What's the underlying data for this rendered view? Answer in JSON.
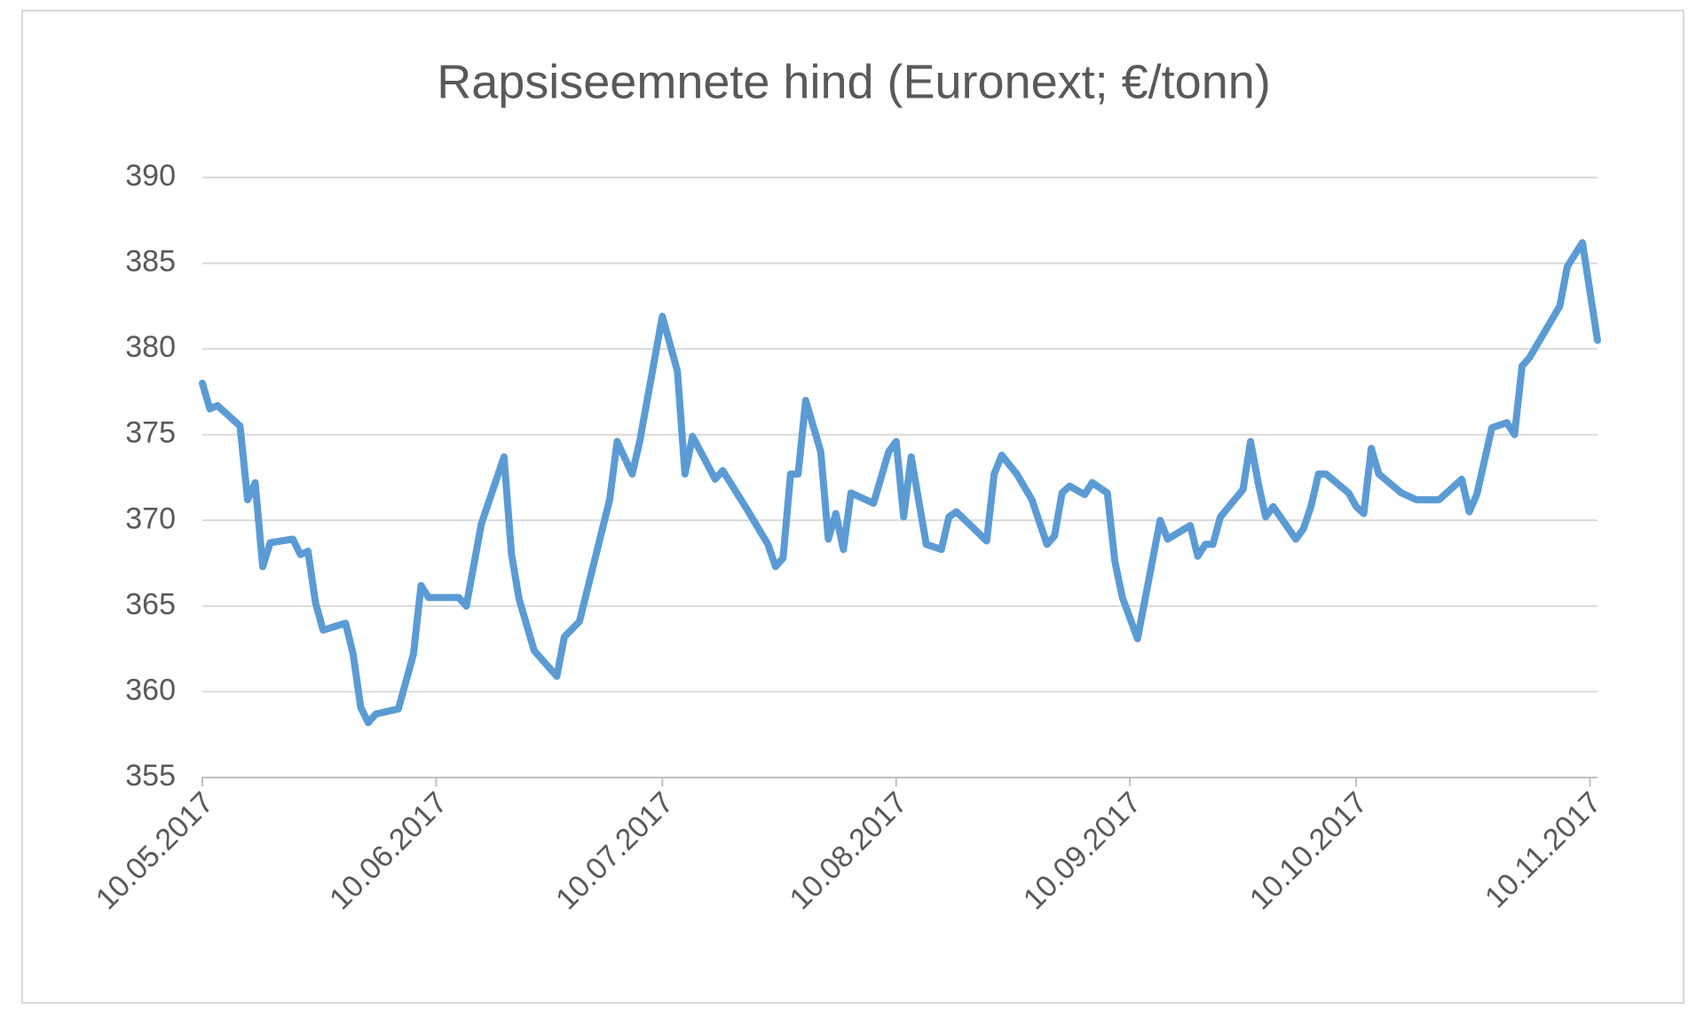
{
  "chart_data": {
    "type": "line",
    "title": "Rapsiseemnete hind (Euronext; €/tonn)",
    "x": [
      "10.05.2017",
      "11.05.2017",
      "12.05.2017",
      "15.05.2017",
      "16.05.2017",
      "17.05.2017",
      "18.05.2017",
      "19.05.2017",
      "22.05.2017",
      "23.05.2017",
      "24.05.2017",
      "25.05.2017",
      "26.05.2017",
      "29.05.2017",
      "30.05.2017",
      "31.05.2017",
      "01.06.2017",
      "02.06.2017",
      "05.06.2017",
      "07.06.2017",
      "08.06.2017",
      "09.06.2017",
      "13.06.2017",
      "14.06.2017",
      "16.06.2017",
      "19.06.2017",
      "20.06.2017",
      "21.06.2017",
      "23.06.2017",
      "26.06.2017",
      "27.06.2017",
      "29.06.2017",
      "03.07.2017",
      "04.07.2017",
      "06.07.2017",
      "07.07.2017",
      "10.07.2017",
      "12.07.2017",
      "13.07.2017",
      "14.07.2017",
      "17.07.2017",
      "18.07.2017",
      "21.07.2017",
      "24.07.2017",
      "25.07.2017",
      "26.07.2017",
      "27.07.2017",
      "28.07.2017",
      "29.07.2017",
      "31.07.2017",
      "01.08.2017",
      "02.08.2017",
      "03.08.2017",
      "04.08.2017",
      "07.08.2017",
      "09.08.2017",
      "10.08.2017",
      "11.08.2017",
      "12.08.2017",
      "14.08.2017",
      "16.08.2017",
      "17.08.2017",
      "18.08.2017",
      "22.08.2017",
      "23.08.2017",
      "24.08.2017",
      "26.08.2017",
      "28.08.2017",
      "30.08.2017",
      "31.08.2017",
      "01.09.2017",
      "02.09.2017",
      "04.09.2017",
      "05.09.2017",
      "07.09.2017",
      "08.09.2017",
      "09.09.2017",
      "11.09.2017",
      "14.09.2017",
      "15.09.2017",
      "18.09.2017",
      "19.09.2017",
      "20.09.2017",
      "21.09.2017",
      "22.09.2017",
      "25.09.2017",
      "26.09.2017",
      "27.09.2017",
      "28.09.2017",
      "29.09.2017",
      "02.10.2017",
      "03.10.2017",
      "04.10.2017",
      "05.10.2017",
      "06.10.2017",
      "09.10.2017",
      "10.10.2017",
      "11.10.2017",
      "12.10.2017",
      "13.10.2017",
      "16.10.2017",
      "18.10.2017",
      "21.10.2017",
      "24.10.2017",
      "25.10.2017",
      "26.10.2017",
      "28.10.2017",
      "30.10.2017",
      "31.10.2017",
      "01.11.2017",
      "02.11.2017",
      "06.11.2017",
      "07.11.2017",
      "09.11.2017",
      "11.11.2017"
    ],
    "series": [
      {
        "color": "#5b9bd5",
        "values": [
          378.0,
          376.5,
          376.7,
          375.5,
          371.2,
          372.2,
          367.3,
          368.7,
          368.9,
          368.0,
          368.2,
          365.2,
          363.6,
          364.0,
          362.2,
          359.1,
          358.2,
          358.7,
          359.0,
          362.2,
          366.2,
          365.5,
          365.5,
          365.0,
          369.8,
          373.7,
          368.0,
          365.4,
          362.4,
          360.9,
          363.2,
          364.1,
          371.2,
          374.6,
          372.7,
          374.6,
          381.9,
          378.7,
          372.7,
          374.9,
          372.4,
          372.9,
          370.8,
          368.6,
          367.3,
          367.8,
          372.7,
          372.7,
          377.0,
          374.0,
          368.9,
          370.4,
          368.3,
          371.6,
          371.0,
          374.0,
          374.6,
          370.2,
          373.7,
          368.6,
          368.3,
          370.2,
          370.5,
          368.8,
          372.7,
          373.8,
          372.7,
          371.2,
          368.6,
          369.1,
          371.6,
          372.0,
          371.5,
          372.2,
          371.6,
          367.6,
          365.5,
          363.1,
          370.0,
          368.9,
          369.7,
          367.9,
          368.6,
          368.6,
          370.2,
          371.8,
          374.6,
          372.2,
          370.2,
          370.8,
          368.9,
          369.5,
          370.8,
          372.7,
          372.7,
          371.6,
          370.8,
          370.4,
          374.2,
          372.7,
          371.6,
          371.2,
          371.2,
          372.4,
          370.5,
          371.5,
          375.4,
          375.7,
          375.0,
          379.0,
          379.5,
          382.5,
          384.8,
          386.2,
          380.5
        ]
      }
    ],
    "xlim": [
      "10.05.2017",
      "11.11.2017"
    ],
    "xticks": [
      "10.05.2017",
      "10.06.2017",
      "10.07.2017",
      "10.08.2017",
      "10.09.2017",
      "10.10.2017",
      "10.11.2017"
    ],
    "ylim": [
      355,
      390
    ],
    "yticks": [
      355,
      360,
      365,
      370,
      375,
      380,
      385,
      390
    ],
    "grid": true
  }
}
